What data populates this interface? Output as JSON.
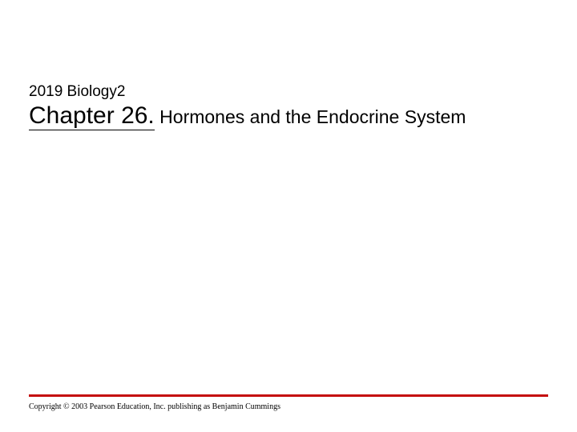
{
  "header": {
    "course": "2019 Biology2",
    "chapter_label": "Chapter 26.",
    "subtitle": " Hormones and the Endocrine System"
  },
  "footer": {
    "rule_color": "#c40a0a",
    "copyright": "Copyright © 2003 Pearson Education, Inc. publishing as Benjamin Cummings"
  },
  "style": {
    "background_color": "#ffffff",
    "course_fontsize": 19,
    "chapter_fontsize": 30,
    "subtitle_fontsize": 23,
    "copyright_fontsize": 10,
    "text_color": "#000000"
  }
}
